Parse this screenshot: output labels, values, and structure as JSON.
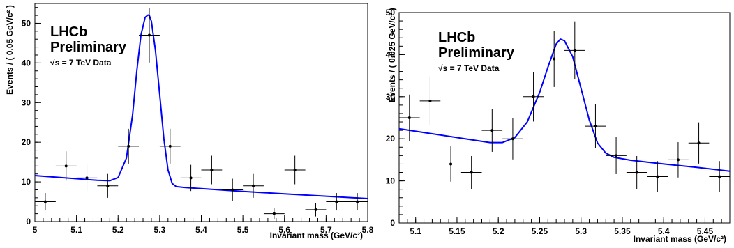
{
  "chart_data": [
    {
      "type": "scatter",
      "title": "",
      "xlabel": "Invariant mass (GeV/c²)",
      "ylabel": "Events / ( 0.05 GeV/c² )",
      "annotations": [
        "LHCb",
        "Preliminary",
        "√s = 7 TeV Data"
      ],
      "xlim": [
        5.0,
        5.8
      ],
      "ylim": [
        0,
        55
      ],
      "x_ticks": [
        5,
        5.1,
        5.2,
        5.3,
        5.4,
        5.5,
        5.6,
        5.7,
        5.8
      ],
      "x_tick_labels": [
        "5",
        "5.1",
        "5.2",
        "5.3",
        "5.4",
        "5.5",
        "5.6",
        "5.7",
        "5.8"
      ],
      "y_ticks": [
        0,
        10,
        20,
        30,
        40,
        50
      ],
      "y_tick_labels": [
        "0",
        "10",
        "20",
        "30",
        "40",
        "50"
      ],
      "bin_half_width": 0.025,
      "series": [
        {
          "kind": "data",
          "x": [
            5.025,
            5.075,
            5.125,
            5.175,
            5.225,
            5.275,
            5.325,
            5.375,
            5.425,
            5.475,
            5.525,
            5.575,
            5.625,
            5.675,
            5.725,
            5.775
          ],
          "y": [
            5,
            14,
            11,
            9,
            19,
            47,
            19,
            11,
            13,
            8,
            9,
            2,
            13,
            3,
            5,
            5
          ],
          "yerr": [
            2.2,
            3.7,
            3.3,
            3.0,
            4.4,
            6.9,
            4.4,
            3.3,
            3.6,
            2.8,
            3.0,
            1.4,
            3.6,
            1.7,
            2.2,
            2.2
          ]
        },
        {
          "kind": "fit",
          "color": "#0000ff",
          "x": [
            5.0,
            5.05,
            5.1,
            5.15,
            5.18,
            5.2,
            5.22,
            5.235,
            5.245,
            5.255,
            5.265,
            5.272,
            5.275,
            5.28,
            5.29,
            5.3,
            5.31,
            5.32,
            5.33,
            5.34,
            5.36,
            5.4,
            5.5,
            5.6,
            5.7,
            5.8
          ],
          "y": [
            11.6,
            11.2,
            10.8,
            10.4,
            10.3,
            11.1,
            16.0,
            27.0,
            38.0,
            47.0,
            51.5,
            52.1,
            52.0,
            50.5,
            43.0,
            32.0,
            21.0,
            13.0,
            9.6,
            8.8,
            8.6,
            8.3,
            7.6,
            7.0,
            6.4,
            5.8
          ]
        }
      ]
    },
    {
      "type": "scatter",
      "title": "",
      "xlabel": "Invariant mass (GeV/c²)",
      "ylabel": "Events / ( 0.025 GeV/c² )",
      "annotations": [
        "LHCb",
        "Preliminary",
        "√s = 7 TeV Data"
      ],
      "xlim": [
        5.08,
        5.48
      ],
      "ylim": [
        0,
        50
      ],
      "x_ticks": [
        5.1,
        5.15,
        5.2,
        5.25,
        5.3,
        5.35,
        5.4,
        5.45
      ],
      "x_tick_labels": [
        "5.1",
        "5.15",
        "5.2",
        "5.25",
        "5.3",
        "5.35",
        "5.4",
        "5.45"
      ],
      "y_ticks": [
        0,
        10,
        20,
        30,
        40,
        50
      ],
      "y_tick_labels": [
        "0",
        "10",
        "20",
        "30",
        "40",
        "50"
      ],
      "bin_half_width": 0.0125,
      "series": [
        {
          "kind": "data",
          "x": [
            5.0925,
            5.1175,
            5.1425,
            5.1675,
            5.1925,
            5.2175,
            5.2425,
            5.2675,
            5.2925,
            5.3175,
            5.3425,
            5.3675,
            5.3925,
            5.4175,
            5.4425,
            5.4675
          ],
          "y": [
            25,
            29,
            14,
            12,
            22,
            20,
            30,
            39,
            41,
            23,
            16,
            12,
            11,
            15,
            19,
            11
          ],
          "yerr": [
            5.5,
            5.8,
            4.2,
            3.9,
            5.1,
            4.9,
            5.9,
            6.7,
            6.9,
            5.2,
            4.4,
            3.9,
            3.7,
            4.2,
            4.9,
            3.7
          ]
        },
        {
          "kind": "fit",
          "color": "#0000ff",
          "x": [
            5.08,
            5.12,
            5.16,
            5.19,
            5.205,
            5.22,
            5.235,
            5.25,
            5.26,
            5.27,
            5.275,
            5.28,
            5.29,
            5.3,
            5.31,
            5.32,
            5.33,
            5.34,
            5.36,
            5.4,
            5.44,
            5.48
          ],
          "y": [
            22.4,
            21.2,
            20.0,
            19.1,
            19.1,
            20.3,
            24.0,
            31.0,
            37.0,
            42.5,
            43.7,
            43.3,
            39.5,
            32.0,
            24.5,
            19.0,
            16.6,
            15.6,
            14.9,
            14.0,
            13.2,
            12.3
          ]
        }
      ]
    }
  ]
}
